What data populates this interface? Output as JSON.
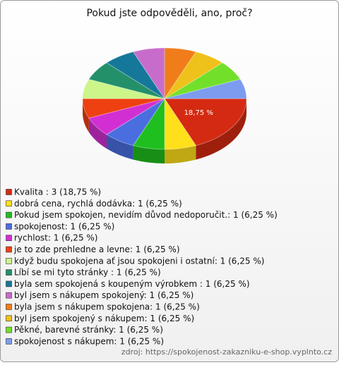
{
  "chart_data": {
    "type": "pie",
    "title": "Pokud jste odpověděli, ano, proč?",
    "categories": [
      "Kvalita : 3 (18,75 %)",
      "dobrá cena, rychlá dodávka: 1 (6,25 %)",
      "Pokud jsem spokojen, nevidím důvod nedoporučit.: 1 (6,25 %)",
      "spokojenost: 1 (6,25 %)",
      "rychlost: 1 (6,25 %)",
      "je to zde prehledne a levne: 1 (6,25 %)",
      "když budu spokojena ať jsou spokojeni i ostatní: 1 (6,25 %)",
      "Líbí se mi tyto stránky : 1 (6,25 %)",
      "byla sem spokojená s koupeným výrobkem : 1 (6,25 %)",
      "byl jsem s nákupem spokojený: 1 (6,25 %)",
      "byla jsem s nákupem spokojena: 1 (6,25 %)",
      "byl jsem spokojený s nákupem: 1 (6,25 %)",
      "Pěkné, barevné stránky: 1 (6,25 %)",
      "spokojenost s nákupem: 1 (6,25 %)"
    ],
    "values": [
      18.75,
      6.25,
      6.25,
      6.25,
      6.25,
      6.25,
      6.25,
      6.25,
      6.25,
      6.25,
      6.25,
      6.25,
      6.25,
      6.25
    ],
    "value_labels": [
      "18,75 %",
      null,
      null,
      null,
      null,
      null,
      null,
      null,
      null,
      null,
      null,
      null,
      null,
      null
    ],
    "colors": [
      "#d42a12",
      "#ffe01a",
      "#1fbf1f",
      "#4a6ee0",
      "#d22fd2",
      "#ee4010",
      "#ccf58a",
      "#23906a",
      "#15789a",
      "#c86ccc",
      "#f07d1a",
      "#eec21a",
      "#72e02a",
      "#7c9cf0"
    ],
    "source": "zdroj: https://spokojenost-zakazniku-e-shop.vyplnto.cz"
  }
}
